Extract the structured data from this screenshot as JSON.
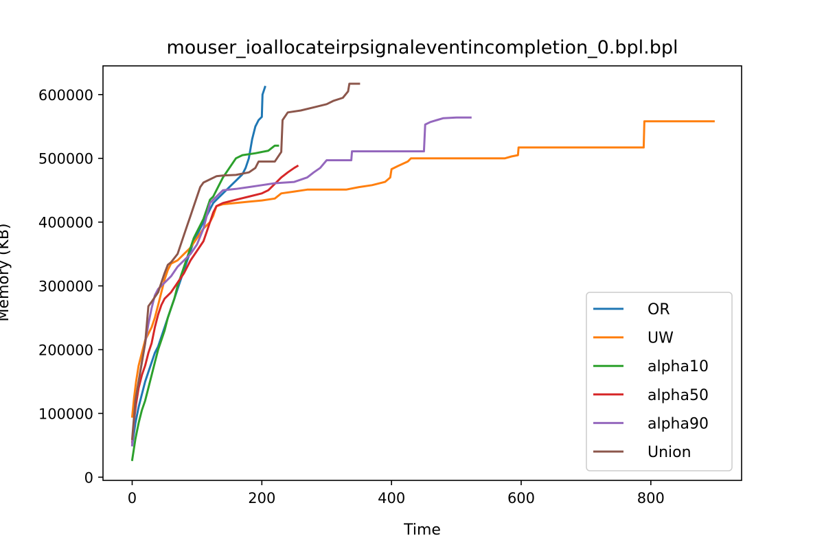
{
  "chart_data": {
    "type": "line",
    "title": "mouser_ioallocateirpsignaleventincompletion_0.bpl.bpl",
    "xlabel": "Time",
    "ylabel": "Memory (KB)",
    "xlim": [
      -45,
      940
    ],
    "ylim": [
      -5000,
      645000
    ],
    "xticks": [
      0,
      200,
      400,
      600,
      800
    ],
    "yticks": [
      0,
      100000,
      200000,
      300000,
      400000,
      500000,
      600000
    ],
    "grid": false,
    "legend_position": "lower-right",
    "series": [
      {
        "name": "OR",
        "color": "#1f77b4",
        "points": [
          [
            0,
            50000
          ],
          [
            5,
            85000
          ],
          [
            10,
            110000
          ],
          [
            15,
            130000
          ],
          [
            20,
            150000
          ],
          [
            25,
            165000
          ],
          [
            30,
            180000
          ],
          [
            35,
            195000
          ],
          [
            40,
            205000
          ],
          [
            45,
            220000
          ],
          [
            50,
            235000
          ],
          [
            55,
            250000
          ],
          [
            60,
            265000
          ],
          [
            65,
            280000
          ],
          [
            70,
            295000
          ],
          [
            75,
            310000
          ],
          [
            80,
            325000
          ],
          [
            85,
            340000
          ],
          [
            90,
            355000
          ],
          [
            95,
            370000
          ],
          [
            100,
            380000
          ],
          [
            105,
            390000
          ],
          [
            110,
            400000
          ],
          [
            115,
            410000
          ],
          [
            120,
            420000
          ],
          [
            125,
            430000
          ],
          [
            130,
            435000
          ],
          [
            140,
            445000
          ],
          [
            150,
            455000
          ],
          [
            160,
            465000
          ],
          [
            170,
            475000
          ],
          [
            175,
            485000
          ],
          [
            180,
            500000
          ],
          [
            185,
            530000
          ],
          [
            190,
            550000
          ],
          [
            195,
            560000
          ],
          [
            200,
            565000
          ],
          [
            201,
            600000
          ],
          [
            205,
            612000
          ]
        ]
      },
      {
        "name": "UW",
        "color": "#ff7f0e",
        "points": [
          [
            0,
            95000
          ],
          [
            3,
            125000
          ],
          [
            6,
            150000
          ],
          [
            10,
            175000
          ],
          [
            15,
            195000
          ],
          [
            20,
            215000
          ],
          [
            25,
            225000
          ],
          [
            30,
            235000
          ],
          [
            35,
            250000
          ],
          [
            40,
            270000
          ],
          [
            45,
            290000
          ],
          [
            50,
            310000
          ],
          [
            55,
            325000
          ],
          [
            60,
            335000
          ],
          [
            70,
            340000
          ],
          [
            80,
            350000
          ],
          [
            90,
            360000
          ],
          [
            100,
            375000
          ],
          [
            110,
            390000
          ],
          [
            120,
            400000
          ],
          [
            125,
            410000
          ],
          [
            130,
            425000
          ],
          [
            140,
            428000
          ],
          [
            160,
            430000
          ],
          [
            180,
            432000
          ],
          [
            200,
            434000
          ],
          [
            220,
            437000
          ],
          [
            230,
            445000
          ],
          [
            250,
            448000
          ],
          [
            270,
            451000
          ],
          [
            300,
            451000
          ],
          [
            330,
            451000
          ],
          [
            350,
            455000
          ],
          [
            370,
            458000
          ],
          [
            390,
            463000
          ],
          [
            398,
            470000
          ],
          [
            400,
            483000
          ],
          [
            410,
            488000
          ],
          [
            425,
            495000
          ],
          [
            430,
            500000
          ],
          [
            500,
            500000
          ],
          [
            575,
            500000
          ],
          [
            585,
            503000
          ],
          [
            595,
            505000
          ],
          [
            596,
            517000
          ],
          [
            650,
            517000
          ],
          [
            720,
            517000
          ],
          [
            789,
            517000
          ],
          [
            790,
            558000
          ],
          [
            850,
            558000
          ],
          [
            897,
            558000
          ]
        ]
      },
      {
        "name": "alpha10",
        "color": "#2ca02c",
        "points": [
          [
            0,
            27000
          ],
          [
            5,
            60000
          ],
          [
            10,
            85000
          ],
          [
            15,
            105000
          ],
          [
            20,
            120000
          ],
          [
            25,
            140000
          ],
          [
            30,
            160000
          ],
          [
            35,
            180000
          ],
          [
            40,
            200000
          ],
          [
            45,
            215000
          ],
          [
            50,
            230000
          ],
          [
            55,
            250000
          ],
          [
            60,
            265000
          ],
          [
            65,
            280000
          ],
          [
            70,
            300000
          ],
          [
            75,
            315000
          ],
          [
            80,
            330000
          ],
          [
            85,
            345000
          ],
          [
            90,
            360000
          ],
          [
            95,
            375000
          ],
          [
            100,
            385000
          ],
          [
            105,
            395000
          ],
          [
            110,
            405000
          ],
          [
            115,
            420000
          ],
          [
            120,
            435000
          ],
          [
            125,
            440000
          ],
          [
            130,
            450000
          ],
          [
            140,
            470000
          ],
          [
            150,
            485000
          ],
          [
            160,
            500000
          ],
          [
            170,
            505000
          ],
          [
            190,
            508000
          ],
          [
            210,
            512000
          ],
          [
            220,
            520000
          ],
          [
            225,
            520000
          ]
        ]
      },
      {
        "name": "alpha50",
        "color": "#d62728",
        "points": [
          [
            0,
            55000
          ],
          [
            3,
            90000
          ],
          [
            6,
            115000
          ],
          [
            10,
            140000
          ],
          [
            15,
            160000
          ],
          [
            20,
            175000
          ],
          [
            25,
            195000
          ],
          [
            30,
            210000
          ],
          [
            35,
            235000
          ],
          [
            40,
            255000
          ],
          [
            45,
            270000
          ],
          [
            50,
            280000
          ],
          [
            60,
            290000
          ],
          [
            70,
            305000
          ],
          [
            80,
            320000
          ],
          [
            90,
            340000
          ],
          [
            100,
            355000
          ],
          [
            110,
            370000
          ],
          [
            115,
            385000
          ],
          [
            120,
            400000
          ],
          [
            125,
            415000
          ],
          [
            130,
            425000
          ],
          [
            140,
            430000
          ],
          [
            160,
            435000
          ],
          [
            180,
            440000
          ],
          [
            200,
            445000
          ],
          [
            210,
            450000
          ],
          [
            220,
            460000
          ],
          [
            230,
            470000
          ],
          [
            240,
            478000
          ],
          [
            250,
            485000
          ],
          [
            255,
            488000
          ]
        ]
      },
      {
        "name": "alpha90",
        "color": "#9467bd",
        "points": [
          [
            0,
            50000
          ],
          [
            5,
            120000
          ],
          [
            10,
            150000
          ],
          [
            15,
            180000
          ],
          [
            20,
            210000
          ],
          [
            25,
            240000
          ],
          [
            30,
            265000
          ],
          [
            35,
            285000
          ],
          [
            40,
            295000
          ],
          [
            50,
            305000
          ],
          [
            60,
            315000
          ],
          [
            70,
            330000
          ],
          [
            80,
            340000
          ],
          [
            90,
            350000
          ],
          [
            100,
            365000
          ],
          [
            110,
            390000
          ],
          [
            115,
            410000
          ],
          [
            120,
            430000
          ],
          [
            130,
            440000
          ],
          [
            140,
            450000
          ],
          [
            160,
            452000
          ],
          [
            180,
            455000
          ],
          [
            200,
            458000
          ],
          [
            220,
            461000
          ],
          [
            250,
            463000
          ],
          [
            270,
            470000
          ],
          [
            280,
            478000
          ],
          [
            290,
            485000
          ],
          [
            300,
            497000
          ],
          [
            320,
            497000
          ],
          [
            338,
            497000
          ],
          [
            339,
            511000
          ],
          [
            380,
            511000
          ],
          [
            450,
            511000
          ],
          [
            452,
            553000
          ],
          [
            460,
            557000
          ],
          [
            470,
            560000
          ],
          [
            480,
            563000
          ],
          [
            500,
            564000
          ],
          [
            522,
            564000
          ]
        ]
      },
      {
        "name": "Union",
        "color": "#8c564b",
        "points": [
          [
            0,
            60000
          ],
          [
            5,
            120000
          ],
          [
            10,
            150000
          ],
          [
            15,
            180000
          ],
          [
            20,
            210000
          ],
          [
            25,
            268000
          ],
          [
            30,
            275000
          ],
          [
            40,
            290000
          ],
          [
            45,
            305000
          ],
          [
            50,
            320000
          ],
          [
            55,
            333000
          ],
          [
            60,
            337000
          ],
          [
            70,
            350000
          ],
          [
            75,
            365000
          ],
          [
            80,
            380000
          ],
          [
            85,
            395000
          ],
          [
            90,
            410000
          ],
          [
            95,
            425000
          ],
          [
            100,
            440000
          ],
          [
            105,
            455000
          ],
          [
            110,
            462000
          ],
          [
            120,
            467000
          ],
          [
            130,
            472000
          ],
          [
            140,
            473000
          ],
          [
            160,
            474000
          ],
          [
            180,
            478000
          ],
          [
            190,
            485000
          ],
          [
            195,
            495000
          ],
          [
            220,
            495000
          ],
          [
            230,
            510000
          ],
          [
            232,
            560000
          ],
          [
            240,
            572000
          ],
          [
            260,
            575000
          ],
          [
            280,
            580000
          ],
          [
            300,
            585000
          ],
          [
            310,
            590000
          ],
          [
            325,
            595000
          ],
          [
            333,
            605000
          ],
          [
            335,
            617000
          ],
          [
            350,
            617000
          ]
        ]
      }
    ]
  }
}
